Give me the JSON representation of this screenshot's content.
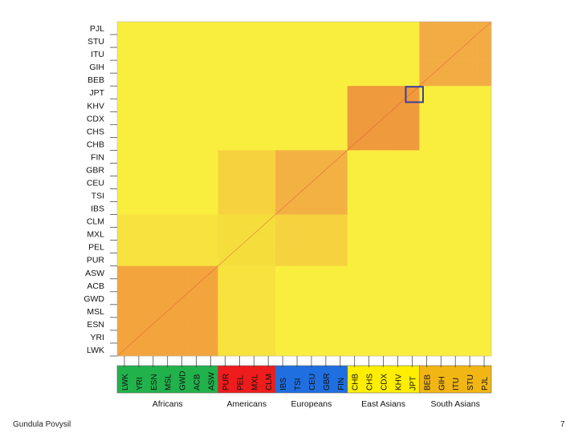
{
  "chart_data": {
    "type": "heatmap",
    "title": "",
    "xlabel": "",
    "ylabel": "",
    "populations": [
      "LWK",
      "YRI",
      "ESN",
      "MSL",
      "GWD",
      "ACB",
      "ASW",
      "PUR",
      "PEL",
      "MXL",
      "CLM",
      "IBS",
      "TSI",
      "CEU",
      "GBR",
      "FIN",
      "CHB",
      "CHS",
      "CDX",
      "KHV",
      "JPT",
      "BEB",
      "GIH",
      "ITU",
      "STU",
      "PJL"
    ],
    "groups": [
      {
        "name": "Africans",
        "color": "#22b24c",
        "members": [
          "LWK",
          "YRI",
          "ESN",
          "MSL",
          "GWD",
          "ACB",
          "ASW"
        ]
      },
      {
        "name": "Americans",
        "color": "#ee1c1c",
        "members": [
          "PUR",
          "PEL",
          "MXL",
          "CLM"
        ]
      },
      {
        "name": "Europeans",
        "color": "#1f6fe0",
        "members": [
          "IBS",
          "TSI",
          "CEU",
          "GBR",
          "FIN"
        ]
      },
      {
        "name": "East Asians",
        "color": "#ffee00",
        "members": [
          "CHB",
          "CHS",
          "CDX",
          "KHV",
          "JPT"
        ]
      },
      {
        "name": "South Asians",
        "color": "#f2b614",
        "members": [
          "BEB",
          "GIH",
          "ITU",
          "STU",
          "PJL"
        ]
      }
    ],
    "block_colors": {
      "Africans": "#f3a43c",
      "Americans": "#f5de3c",
      "Europeans": "#f3b143",
      "East Asians": "#ef9a3c",
      "South Asians": "#f3ac44",
      "between": "#f9ee3e",
      "Africans-Americans": "#f7e23e",
      "Americans-Europeans": "#f6d23f"
    },
    "highlight_cell": {
      "row": "JPT",
      "col": "JPT"
    },
    "highlight_color": "#3a3f9e"
  },
  "footer": {
    "author": "Gundula Povysil",
    "page": "7"
  }
}
